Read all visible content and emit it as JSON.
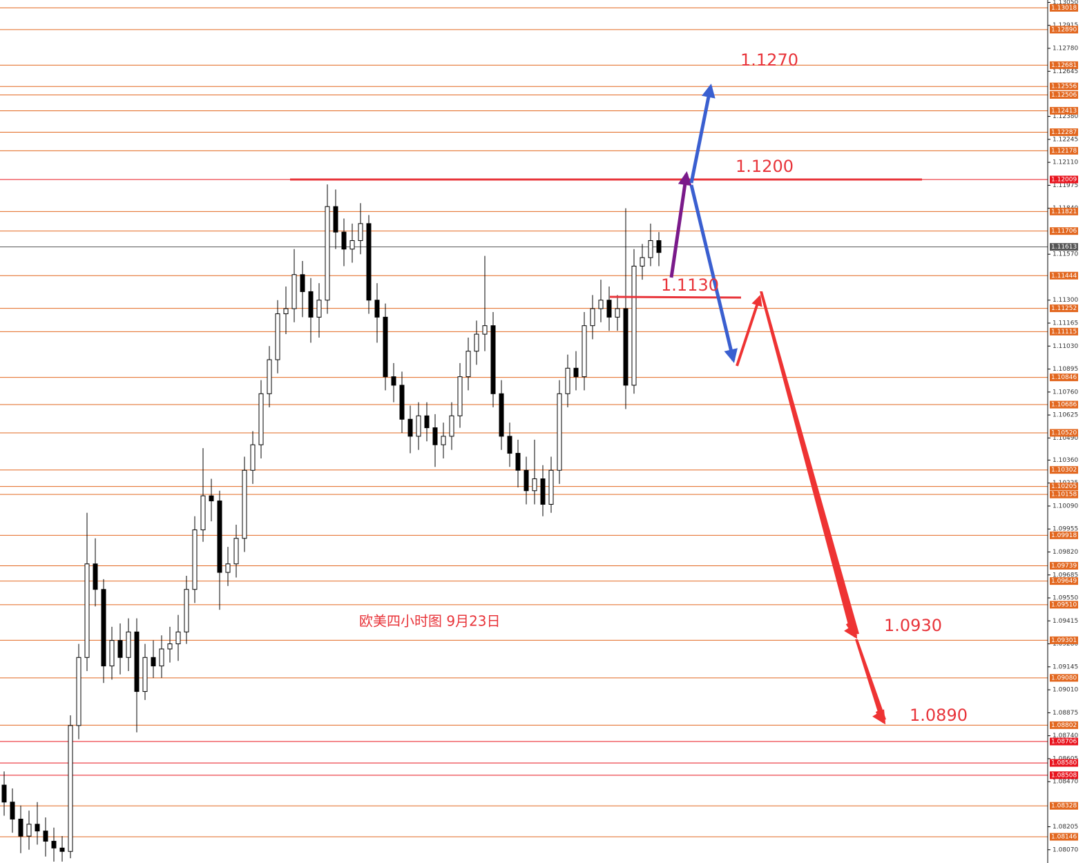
{
  "chart_data": {
    "type": "candlestick",
    "caption": "欧美四小时图   9月23日",
    "annotations": [
      {
        "value": 1.127,
        "label": "1.1270"
      },
      {
        "value": 1.12,
        "label": "1.1200"
      },
      {
        "value": 1.113,
        "label": "1.1130"
      },
      {
        "value": 1.093,
        "label": "1.0930"
      },
      {
        "value": 1.089,
        "label": "1.0890"
      }
    ],
    "up_color": "#ffffff",
    "down_color": "#000000",
    "outline_color": "#000000",
    "open": [
      1.0845,
      1.0835,
      1.0825,
      1.0815,
      1.0822,
      1.0818,
      1.0812,
      1.0808,
      1.0806,
      1.088,
      1.092,
      1.0975,
      1.096,
      1.0915,
      1.093,
      1.092,
      1.0935,
      1.09,
      1.092,
      1.0915,
      1.0925,
      1.0928,
      1.0935,
      1.096,
      1.0995,
      1.1015,
      1.1012,
      1.097,
      1.0975,
      1.099,
      1.103,
      1.1045,
      1.1075,
      1.1095,
      1.1122,
      1.1125,
      1.1145,
      1.1135,
      1.112,
      1.113,
      1.1185,
      1.117,
      1.116,
      1.1165,
      1.1175,
      1.113,
      1.112,
      1.1085,
      1.108,
      1.106,
      1.105,
      1.1062,
      1.1055,
      1.1045,
      1.105,
      1.1062,
      1.1085,
      1.11,
      1.111,
      1.1115,
      1.1075,
      1.105,
      1.104,
      1.103,
      1.1018,
      1.1025,
      1.101,
      1.103,
      1.1075,
      1.109,
      1.1085,
      1.1115,
      1.1125,
      1.113,
      1.112,
      1.1125,
      1.108,
      1.115,
      1.1155,
      1.1165
    ],
    "high": [
      1.0853,
      1.0843,
      1.0833,
      1.083,
      1.0835,
      1.0826,
      1.082,
      1.0815,
      1.0886,
      1.0928,
      1.1005,
      1.099,
      1.0966,
      1.0938,
      1.094,
      1.0943,
      1.0943,
      1.0928,
      1.093,
      1.0933,
      1.0938,
      1.0945,
      1.0968,
      1.1003,
      1.1043,
      1.1025,
      1.1018,
      1.0985,
      1.0998,
      1.1038,
      1.1053,
      1.1083,
      1.1103,
      1.113,
      1.1138,
      1.116,
      1.1153,
      1.1143,
      1.114,
      1.1198,
      1.1195,
      1.1178,
      1.1175,
      1.1187,
      1.118,
      1.114,
      1.1128,
      1.1093,
      1.1088,
      1.1068,
      1.107,
      1.107,
      1.1063,
      1.1058,
      1.107,
      1.1093,
      1.1108,
      1.1118,
      1.1156,
      1.1123,
      1.1083,
      1.1058,
      1.1048,
      1.1038,
      1.1048,
      1.1033,
      1.1038,
      1.1083,
      1.1098,
      1.11,
      1.1123,
      1.1133,
      1.1142,
      1.1138,
      1.1133,
      1.1184,
      1.116,
      1.1163,
      1.1175,
      1.117
    ],
    "low": [
      1.0827,
      1.0817,
      1.0805,
      1.0807,
      1.081,
      1.0803,
      1.08,
      1.08,
      1.0802,
      1.0872,
      1.0912,
      1.095,
      1.0905,
      1.0907,
      1.091,
      1.0912,
      1.0876,
      1.0895,
      1.0908,
      1.0908,
      1.0917,
      1.0918,
      1.0928,
      1.0952,
      1.0988,
      1.1,
      1.0948,
      1.0962,
      1.0967,
      1.0982,
      1.1022,
      1.1037,
      1.1067,
      1.1087,
      1.111,
      1.1117,
      1.112,
      1.1105,
      1.1108,
      1.1122,
      1.116,
      1.115,
      1.1152,
      1.1157,
      1.1122,
      1.1105,
      1.1077,
      1.107,
      1.1052,
      1.104,
      1.1042,
      1.1047,
      1.1032,
      1.1037,
      1.1042,
      1.1055,
      1.1077,
      1.1092,
      1.11,
      1.1067,
      1.1042,
      1.1032,
      1.102,
      1.101,
      1.101,
      1.1003,
      1.1005,
      1.1022,
      1.1067,
      1.1077,
      1.1077,
      1.1107,
      1.1117,
      1.1112,
      1.1112,
      1.1066,
      1.1075,
      1.1142,
      1.115,
      1.115
    ],
    "close": [
      1.0835,
      1.0825,
      1.0815,
      1.0822,
      1.0818,
      1.0812,
      1.0808,
      1.0806,
      1.088,
      1.092,
      1.0975,
      1.096,
      1.0915,
      1.093,
      1.092,
      1.0935,
      1.09,
      1.092,
      1.0915,
      1.0925,
      1.0928,
      1.0935,
      1.096,
      1.0995,
      1.1015,
      1.1012,
      1.097,
      1.0975,
      1.099,
      1.103,
      1.1045,
      1.1075,
      1.1095,
      1.1122,
      1.1125,
      1.1145,
      1.1135,
      1.112,
      1.113,
      1.1185,
      1.117,
      1.116,
      1.1165,
      1.1175,
      1.113,
      1.112,
      1.1085,
      1.108,
      1.106,
      1.105,
      1.1062,
      1.1055,
      1.1045,
      1.105,
      1.1062,
      1.1085,
      1.11,
      1.111,
      1.1115,
      1.1075,
      1.105,
      1.104,
      1.103,
      1.1018,
      1.1025,
      1.101,
      1.103,
      1.1075,
      1.109,
      1.1085,
      1.1115,
      1.1125,
      1.113,
      1.112,
      1.1125,
      1.108,
      1.115,
      1.1155,
      1.1165,
      1.1158
    ],
    "ylim": [
      1.07992,
      1.13064
    ],
    "yticks": [
      {
        "value": 1.1305,
        "label": "1.13050"
      },
      {
        "value": 1.12915,
        "label": "1.12915"
      },
      {
        "value": 1.1278,
        "label": "1.12780"
      },
      {
        "value": 1.12645,
        "label": "1.12645"
      },
      {
        "value": 1.1238,
        "label": "1.12380"
      },
      {
        "value": 1.12245,
        "label": "1.12245"
      },
      {
        "value": 1.1211,
        "label": "1.12110"
      },
      {
        "value": 1.11975,
        "label": "1.11975"
      },
      {
        "value": 1.1184,
        "label": "1.11840"
      },
      {
        "value": 1.1157,
        "label": "1.11570"
      },
      {
        "value": 1.113,
        "label": "1.11300"
      },
      {
        "value": 1.11165,
        "label": "1.11165"
      },
      {
        "value": 1.1103,
        "label": "1.11030"
      },
      {
        "value": 1.10895,
        "label": "1.10895"
      },
      {
        "value": 1.1076,
        "label": "1.10760"
      },
      {
        "value": 1.10625,
        "label": "1.10625"
      },
      {
        "value": 1.1049,
        "label": "1.10490"
      },
      {
        "value": 1.1036,
        "label": "1.10360"
      },
      {
        "value": 1.10225,
        "label": "1.10225"
      },
      {
        "value": 1.1009,
        "label": "1.10090"
      },
      {
        "value": 1.09955,
        "label": "1.09955"
      },
      {
        "value": 1.0982,
        "label": "1.09820"
      },
      {
        "value": 1.09685,
        "label": "1.09685"
      },
      {
        "value": 1.0955,
        "label": "1.09550"
      },
      {
        "value": 1.09415,
        "label": "1.09415"
      },
      {
        "value": 1.0928,
        "label": "1.09280"
      },
      {
        "value": 1.09145,
        "label": "1.09145"
      },
      {
        "value": 1.0901,
        "label": "1.09010"
      },
      {
        "value": 1.08875,
        "label": "1.08875"
      },
      {
        "value": 1.0874,
        "label": "1.08740"
      },
      {
        "value": 1.08605,
        "label": "1.08605"
      },
      {
        "value": 1.0847,
        "label": "1.08470"
      },
      {
        "value": 1.08205,
        "label": "1.08205"
      },
      {
        "value": 1.0807,
        "label": "1.08070"
      }
    ],
    "levels": [
      {
        "value": 1.13018,
        "label": "1.13018",
        "color": "#e2671f"
      },
      {
        "value": 1.1289,
        "label": "1.12890",
        "color": "#e2671f"
      },
      {
        "value": 1.12681,
        "label": "1.12681",
        "color": "#e2671f"
      },
      {
        "value": 1.12556,
        "label": "1.12556",
        "color": "#e2671f"
      },
      {
        "value": 1.12506,
        "label": "1.12506",
        "color": "#e2671f"
      },
      {
        "value": 1.12413,
        "label": "1.12413",
        "color": "#e2671f"
      },
      {
        "value": 1.12287,
        "label": "1.12287",
        "color": "#e2671f"
      },
      {
        "value": 1.12178,
        "label": "1.12178",
        "color": "#e2671f"
      },
      {
        "value": 1.12009,
        "label": "1.12009",
        "color": "#e8141e"
      },
      {
        "value": 1.11821,
        "label": "1.11821",
        "color": "#e2671f"
      },
      {
        "value": 1.11706,
        "label": "1.11706",
        "color": "#e2671f"
      },
      {
        "value": 1.11613,
        "label": "1.11613",
        "color": "#555555"
      },
      {
        "value": 1.11444,
        "label": "1.11444",
        "color": "#e2671f"
      },
      {
        "value": 1.11252,
        "label": "1.11252",
        "color": "#e2671f"
      },
      {
        "value": 1.11115,
        "label": "1.11115",
        "color": "#e2671f"
      },
      {
        "value": 1.10846,
        "label": "1.10846",
        "color": "#e2671f"
      },
      {
        "value": 1.10686,
        "label": "1.10686",
        "color": "#e2671f"
      },
      {
        "value": 1.1052,
        "label": "1.10520",
        "color": "#e2671f"
      },
      {
        "value": 1.10302,
        "label": "1.10302",
        "color": "#e2671f"
      },
      {
        "value": 1.10205,
        "label": "1.10205",
        "color": "#e2671f"
      },
      {
        "value": 1.10158,
        "label": "1.10158",
        "color": "#e2671f"
      },
      {
        "value": 1.09918,
        "label": "1.09918",
        "color": "#e2671f"
      },
      {
        "value": 1.09739,
        "label": "1.09739",
        "color": "#e2671f"
      },
      {
        "value": 1.09649,
        "label": "1.09649",
        "color": "#e2671f"
      },
      {
        "value": 1.0951,
        "label": "1.09510",
        "color": "#e2671f"
      },
      {
        "value": 1.09301,
        "label": "1.09301",
        "color": "#e2671f"
      },
      {
        "value": 1.0908,
        "label": "1.09080",
        "color": "#e2671f"
      },
      {
        "value": 1.08802,
        "label": "1.08802",
        "color": "#e2671f"
      },
      {
        "value": 1.08706,
        "label": "1.08706",
        "color": "#e8141e"
      },
      {
        "value": 1.0858,
        "label": "1.08580",
        "color": "#e8141e"
      },
      {
        "value": 1.08508,
        "label": "1.08508",
        "color": "#e8141e"
      },
      {
        "value": 1.08328,
        "label": "1.08328",
        "color": "#e2671f"
      },
      {
        "value": 1.08146,
        "label": "1.08146",
        "color": "#e2671f"
      }
    ]
  }
}
